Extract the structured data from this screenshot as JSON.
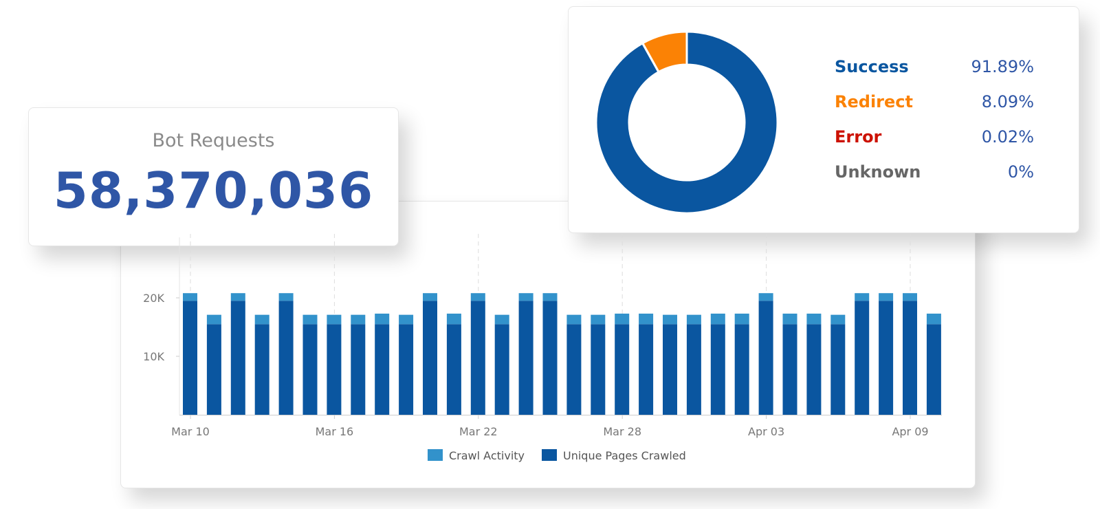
{
  "bot_requests": {
    "title": "Bot Requests",
    "value": "58,370,036"
  },
  "status_breakdown": {
    "items": [
      {
        "label": "Success",
        "value_text": "91.89%",
        "percent": 91.89,
        "color": "#0a56a0"
      },
      {
        "label": "Redirect",
        "value_text": "8.09%",
        "percent": 8.09,
        "color": "#fb8205"
      },
      {
        "label": "Error",
        "value_text": "0.02%",
        "percent": 0.02,
        "color": "#cc1100"
      },
      {
        "label": "Unknown",
        "value_text": "0%",
        "percent": 0,
        "color": "#666666"
      }
    ]
  },
  "chart_data": {
    "type": "bar",
    "stacked": true,
    "ylim": [
      0,
      25000
    ],
    "yticks": [
      {
        "value": 10000,
        "label": "10K"
      },
      {
        "value": 20000,
        "label": "20K"
      }
    ],
    "x_tick_labels": [
      "Mar 10",
      "Mar 16",
      "Mar 22",
      "Mar 28",
      "Apr 03",
      "Apr 09"
    ],
    "x_tick_indices": [
      0,
      6,
      12,
      18,
      24,
      30
    ],
    "series": [
      {
        "name": "Unique Pages Crawled",
        "color": "#0a56a0",
        "values": [
          19500,
          15500,
          19500,
          15500,
          19500,
          15500,
          15500,
          15500,
          15500,
          15500,
          19500,
          15500,
          19500,
          15500,
          19500,
          19500,
          15500,
          15500,
          15500,
          15500,
          15500,
          15500,
          15500,
          15500,
          19500,
          15500,
          15500,
          15500,
          19500,
          19500,
          19500,
          15500
        ]
      },
      {
        "name": "Crawl Activity",
        "color": "#3292cb",
        "values": [
          1300,
          1600,
          1300,
          1600,
          1300,
          1600,
          1600,
          1600,
          1800,
          1600,
          1300,
          1800,
          1300,
          1600,
          1300,
          1300,
          1600,
          1600,
          1800,
          1800,
          1600,
          1600,
          1800,
          1800,
          1300,
          1800,
          1800,
          1600,
          1300,
          1300,
          1300,
          1800
        ]
      }
    ],
    "legend": [
      "Crawl Activity",
      "Unique Pages Crawled"
    ],
    "legend_position": "bottom",
    "grid": false
  }
}
